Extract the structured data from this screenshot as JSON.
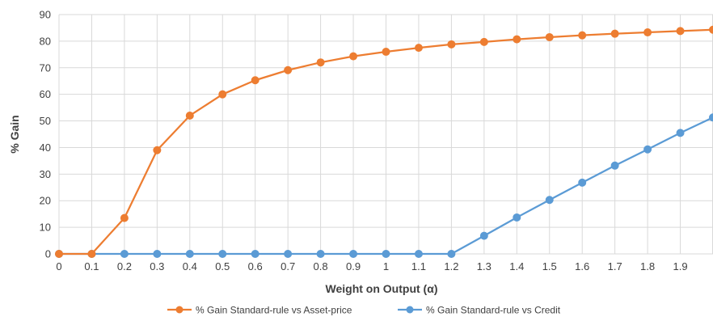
{
  "chart_data": {
    "type": "line",
    "title": "",
    "xlabel": "Weight on Output (α)",
    "ylabel": "% Gain",
    "x": [
      0,
      0.1,
      0.2,
      0.3,
      0.4,
      0.5,
      0.6,
      0.7,
      0.8,
      0.9,
      1,
      1.1,
      1.2,
      1.3,
      1.4,
      1.5,
      1.6,
      1.7,
      1.8,
      1.9,
      2.0
    ],
    "x_tick_labels": [
      "0",
      "0.1",
      "0.2",
      "0.3",
      "0.4",
      "0.5",
      "0.6",
      "0.7",
      "0.8",
      "0.9",
      "1",
      "1.1",
      "1.2",
      "1.3",
      "1.4",
      "1.5",
      "1.6",
      "1.7",
      "1.8",
      "1.9"
    ],
    "xlim": [
      0,
      2.0
    ],
    "ylim": [
      0,
      90
    ],
    "y_ticks": [
      0,
      10,
      20,
      30,
      40,
      50,
      60,
      70,
      80,
      90
    ],
    "grid": true,
    "legend_position": "bottom",
    "series": [
      {
        "name": "% Gain Standard-rule vs Asset-price",
        "color": "#ED7D31",
        "values": [
          0,
          0,
          13.5,
          39,
          52,
          60,
          65.3,
          69.1,
          72,
          74.3,
          76,
          77.5,
          78.8,
          79.7,
          80.7,
          81.5,
          82.2,
          82.8,
          83.3,
          83.8,
          84.3
        ]
      },
      {
        "name": "% Gain Standard-rule vs Credit",
        "color": "#5B9BD5",
        "values": [
          0,
          0,
          0,
          0,
          0,
          0,
          0,
          0,
          0,
          0,
          0,
          0,
          0,
          6.8,
          13.7,
          20.3,
          26.8,
          33.2,
          39.3,
          45.5,
          51.3
        ]
      }
    ]
  }
}
